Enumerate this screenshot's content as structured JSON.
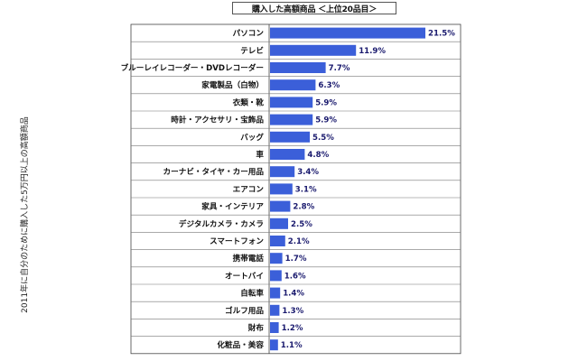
{
  "chart_data": {
    "type": "bar",
    "orientation": "horizontal",
    "title": "購入した高額商品 ＜上位20品目＞",
    "ylabel": "2011年に自分のために購入した5万円以上の高額商品",
    "categories": [
      "パソコン",
      "テレビ",
      "ブルーレイレコーダー・DVDレコーダー",
      "家電製品（白物）",
      "衣類・靴",
      "時計・アクセサリ・宝飾品",
      "バッグ",
      "車",
      "カーナビ・タイヤ・カー用品",
      "エアコン",
      "家具・インテリア",
      "デジタルカメラ・カメラ",
      "スマートフォン",
      "携帯電話",
      "オートバイ",
      "自転車",
      "ゴルフ用品",
      "財布",
      "化粧品・美容"
    ],
    "values": [
      21.5,
      11.9,
      7.7,
      6.3,
      5.9,
      5.9,
      5.5,
      4.8,
      3.4,
      3.1,
      2.8,
      2.5,
      2.1,
      1.7,
      1.6,
      1.4,
      1.3,
      1.2,
      1.1
    ],
    "value_labels": [
      "21.5%",
      "11.9%",
      "7.7%",
      "6.3%",
      "5.9%",
      "5.9%",
      "5.5%",
      "4.8%",
      "3.4%",
      "3.1%",
      "2.8%",
      "2.5%",
      "2.1%",
      "1.7%",
      "1.6%",
      "1.4%",
      "1.3%",
      "1.2%",
      "1.1%"
    ],
    "bar_color": "#3b5fd9",
    "xlim": [
      0,
      25
    ],
    "grid": true
  }
}
